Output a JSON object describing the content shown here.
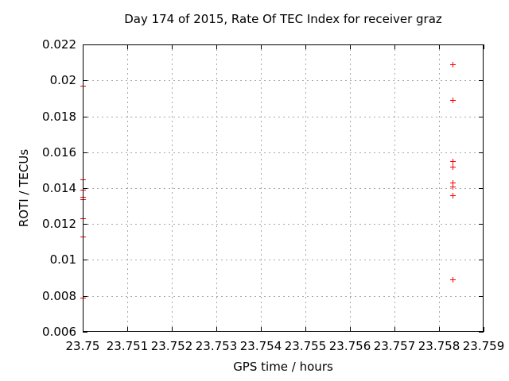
{
  "chart_data": {
    "type": "scatter",
    "title": "Day 174 of 2015, Rate Of TEC Index for receiver graz",
    "xlabel": "GPS time / hours",
    "ylabel": "ROTI / TECUs",
    "xlim": [
      23.75,
      23.759
    ],
    "ylim": [
      0.006,
      0.022
    ],
    "xticks": [
      23.75,
      23.751,
      23.752,
      23.753,
      23.754,
      23.755,
      23.756,
      23.757,
      23.758,
      23.759
    ],
    "yticks": [
      0.006,
      0.008,
      0.01,
      0.012,
      0.014,
      0.016,
      0.018,
      0.02,
      0.022
    ],
    "xtick_labels": [
      "23.75",
      "23.751",
      "23.752",
      "23.753",
      "23.754",
      "23.755",
      "23.756",
      "23.757",
      "23.758",
      "23.759"
    ],
    "ytick_labels": [
      "0.006",
      "0.008",
      "0.01",
      "0.012",
      "0.014",
      "0.016",
      "0.018",
      "0.02",
      "0.022"
    ],
    "grid": true,
    "legend": false,
    "marker": "plus",
    "marker_color": "#ff0000",
    "series": [
      {
        "name": "ROTI points",
        "points": [
          [
            23.75,
            0.0197
          ],
          [
            23.75,
            0.0145
          ],
          [
            23.75,
            0.0139
          ],
          [
            23.75,
            0.0135
          ],
          [
            23.75,
            0.0134
          ],
          [
            23.75,
            0.0123
          ],
          [
            23.75,
            0.0113
          ],
          [
            23.75,
            0.0079
          ],
          [
            23.7583,
            0.0209
          ],
          [
            23.7583,
            0.0189
          ],
          [
            23.7583,
            0.0155
          ],
          [
            23.7583,
            0.0152
          ],
          [
            23.7583,
            0.0143
          ],
          [
            23.7583,
            0.0141
          ],
          [
            23.7583,
            0.0136
          ],
          [
            23.7583,
            0.0089
          ]
        ]
      }
    ]
  }
}
